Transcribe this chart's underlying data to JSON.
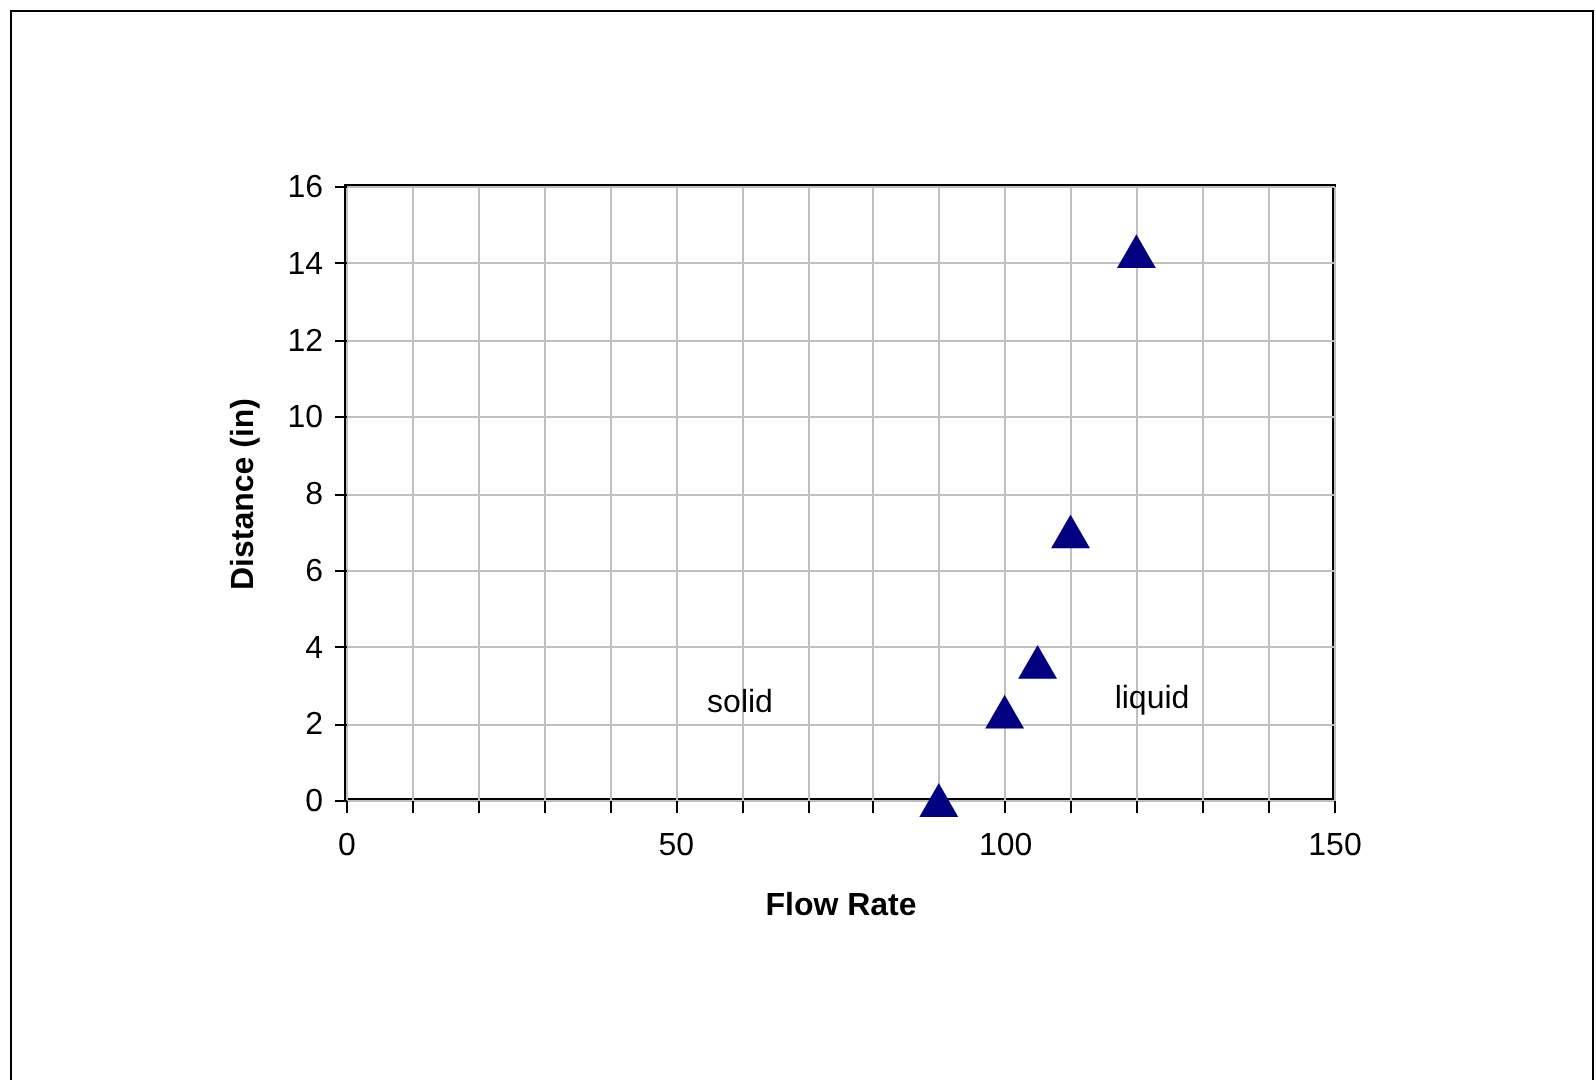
{
  "chart_data": {
    "type": "scatter",
    "xlabel": "Flow Rate",
    "ylabel": "Distance (in)",
    "x": [
      90,
      100,
      105,
      110,
      120
    ],
    "series": [
      {
        "color": "#000080",
        "values": [
          0,
          2.3,
          3.6,
          7.0,
          14.3
        ]
      }
    ],
    "marker": "triangle",
    "xlim": [
      0,
      150
    ],
    "ylim": [
      0,
      16
    ],
    "xticks": [
      0,
      {
        "value": 10,
        "label": null
      },
      {
        "value": 20,
        "label": null
      },
      {
        "value": 30,
        "label": null
      },
      {
        "value": 40,
        "label": null
      },
      50,
      {
        "value": 60,
        "label": null
      },
      {
        "value": 70,
        "label": null
      },
      {
        "value": 80,
        "label": null
      },
      {
        "value": 90,
        "label": null
      },
      100,
      {
        "value": 110,
        "label": null
      },
      {
        "value": 120,
        "label": null
      },
      {
        "value": 130,
        "label": null
      },
      {
        "value": 140,
        "label": null
      },
      150
    ],
    "yticks": [
      0,
      2,
      4,
      6,
      8,
      10,
      12,
      14,
      16
    ],
    "grid": true,
    "annotations": [
      "solid",
      "liquid"
    ]
  }
}
